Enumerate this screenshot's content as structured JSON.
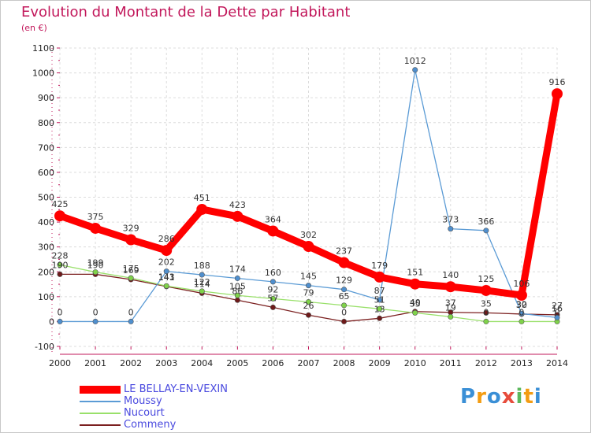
{
  "header": {
    "title": "Evolution du Montant de la Dette par Habitant",
    "unit": "(en €)"
  },
  "chart_data": {
    "type": "line",
    "title": "Evolution du Montant de la Dette par Habitant",
    "ylabel": "(en €)",
    "xlabel": "",
    "ylim": [
      -100,
      1100
    ],
    "yticks": [
      -100,
      0,
      100,
      200,
      300,
      400,
      500,
      600,
      700,
      800,
      900,
      1000,
      1100
    ],
    "categories": [
      "2000",
      "2001",
      "2002",
      "2003",
      "2004",
      "2005",
      "2006",
      "2007",
      "2008",
      "2009",
      "2010",
      "2011",
      "2012",
      "2013",
      "2014"
    ],
    "grid": true,
    "legend_position": "bottom-left",
    "series": [
      {
        "name": "LE BELLAY-EN-VEXIN",
        "color": "#ff0000",
        "values": [
          425,
          375,
          329,
          286,
          451,
          423,
          364,
          302,
          237,
          179,
          151,
          140,
          125,
          106,
          916
        ]
      },
      {
        "name": "Moussy",
        "color": "#5b9bd5",
        "values": [
          0,
          0,
          0,
          202,
          188,
          174,
          160,
          145,
          129,
          87,
          1012,
          373,
          366,
          32,
          16
        ]
      },
      {
        "name": "Nucourt",
        "color": "#99e06a",
        "values": [
          228,
          199,
          175,
          143,
          122,
          105,
          92,
          79,
          65,
          51,
          35,
          19,
          0,
          0,
          0
        ]
      },
      {
        "name": "Commeny",
        "color": "#7b1f1f",
        "values": [
          190,
          190,
          169,
          141,
          114,
          86,
          57,
          26,
          0,
          13,
          40,
          37,
          35,
          30,
          27
        ]
      }
    ]
  },
  "legend": {
    "items": [
      {
        "label": "LE BELLAY-EN-VEXIN",
        "color": "#ff0000"
      },
      {
        "label": "Moussy",
        "color": "#5b9bd5"
      },
      {
        "label": "Nucourt",
        "color": "#99e06a"
      },
      {
        "label": "Commeny",
        "color": "#7b1f1f"
      }
    ]
  },
  "logo": {
    "letters": [
      "P",
      "r",
      "o",
      "x",
      "i",
      "t",
      "i"
    ],
    "colors": [
      "#3a8fd6",
      "#f39c12",
      "#3a8fd6",
      "#e74c3c",
      "#5cb85c",
      "#f39c12",
      "#3a8fd6"
    ]
  }
}
